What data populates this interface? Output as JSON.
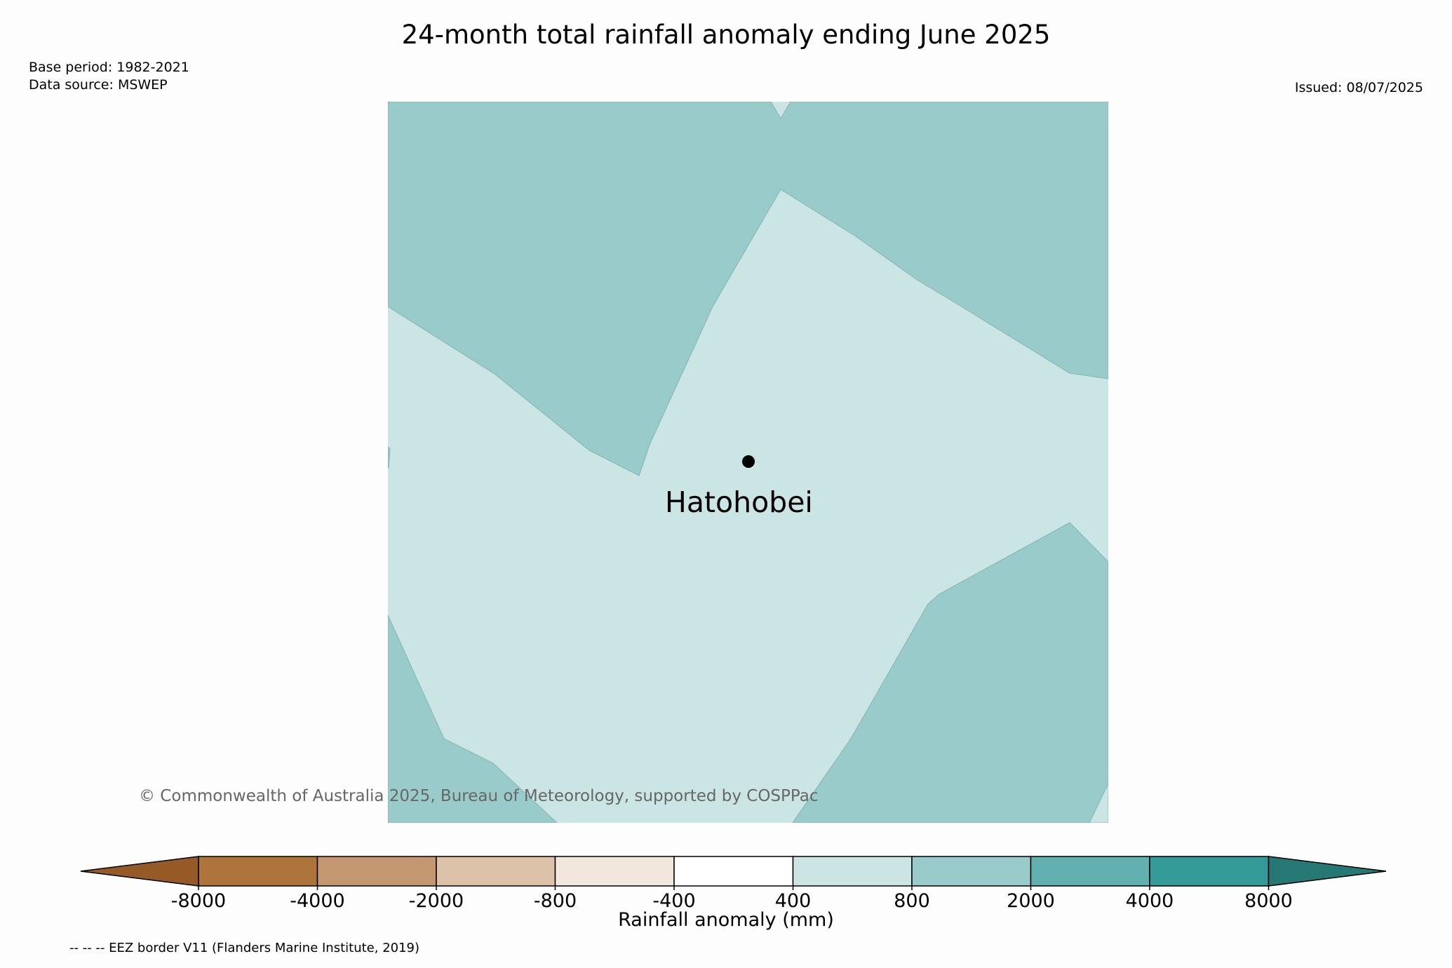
{
  "title": "24-month total rainfall anomaly ending June 2025",
  "meta": {
    "base_period": "Base period: 1982-2021",
    "data_source": "Data source: MSWEP",
    "issued": "Issued: 08/07/2025"
  },
  "station": {
    "name": "Hatohobei"
  },
  "copyright": "© Commonwealth of Australia 2025, Bureau of Meteorology, supported by COSPPac",
  "legend": {
    "title": "Rainfall anomaly (mm)",
    "ticks": [
      "-8000",
      "-4000",
      "-2000",
      "-800",
      "-400",
      "400",
      "800",
      "2000",
      "4000",
      "8000"
    ],
    "colors": [
      "#955a25",
      "#ad743b",
      "#c39870",
      "#dbc2a8",
      "#f1e7dd",
      "#ffffff",
      "#cbe5e4",
      "#99cbcb",
      "#63b0b0",
      "#339a98",
      "#267874"
    ]
  },
  "footnote": "-- -- -- EEZ border V11 (Flanders Marine Institute, 2019)",
  "colors": {
    "anomaly_400_800": "#cbe5e4",
    "anomaly_800_2000": "#99cbcb"
  }
}
